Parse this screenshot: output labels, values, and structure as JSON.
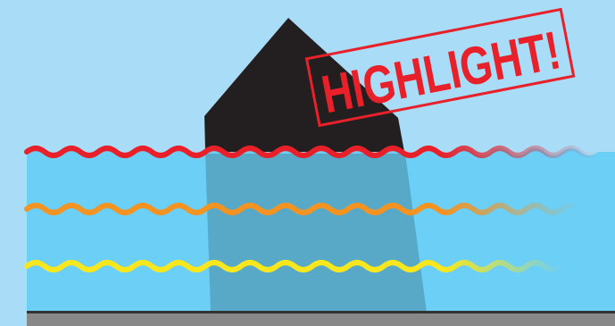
{
  "stamp": {
    "text": "HIGHLIGHT!",
    "color": "#e8202a"
  },
  "colors": {
    "sky": "#a9dcf6",
    "water": "#6ccff5",
    "submerged_shape": "#58a9c8",
    "shape": "#231f20",
    "wave_red": "#e8202a",
    "wave_orange": "#f39322",
    "wave_yellow": "#f7e71c",
    "floor": "#888888",
    "floor_edge": "#333333"
  }
}
